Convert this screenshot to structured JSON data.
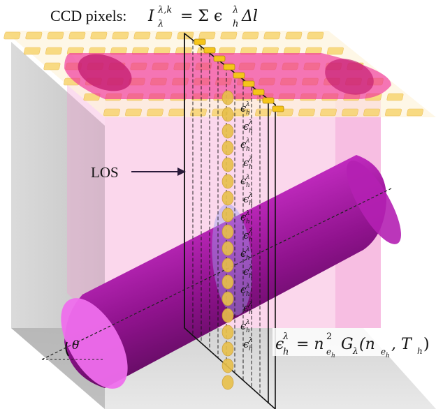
{
  "labels": {
    "ccd_prefix": "CCD pixels:",
    "ccd_equation": "I",
    "ccd_sup": "λ,k",
    "ccd_sub": "λ",
    "ccd_rhs": "= Σ ϵ",
    "ccd_rhs_sup": "λ",
    "ccd_rhs_sub": "h",
    "ccd_rhs_tail": "Δl",
    "los": "LOS",
    "theta": "θ",
    "emiss_lhs": "ϵ",
    "emiss_lhs_sup": "λ",
    "emiss_lhs_sub": "h",
    "emiss_rhs": "= n",
    "emiss_n_sup": "2",
    "emiss_n_sub": "e",
    "emiss_n_subsub": "h",
    "emiss_g": "G",
    "emiss_g_sub": "λ",
    "emiss_args": "(n",
    "emiss_args_sub": "e",
    "emiss_args_subsub": "h",
    "emiss_args_tail": ", T",
    "emiss_t_sub": "h",
    "emiss_close": ")",
    "epsilon_sym": "ϵ",
    "epsilon_sup": "λ",
    "epsilon_sub": "h"
  },
  "colors": {
    "ccd_pixel": "#f7d36a",
    "ccd_pixel_stroke": "#e8b23a",
    "projection_pink": "#ef2f9a",
    "projection_dark": "#c21a6e",
    "volume_pink": "#f7b6dd",
    "wall_gray": "#c9c9c9",
    "floor_gray": "#bdbdbd",
    "tube_dark": "#5a0b59",
    "tube_mid": "#a114a0",
    "tube_light": "#e24ee0",
    "tube_end": "#f07af0",
    "emission_dot": "#e8c04a",
    "plane_line": "#111111"
  },
  "icons": {
    "los_arrow": "right-arrow-icon"
  }
}
